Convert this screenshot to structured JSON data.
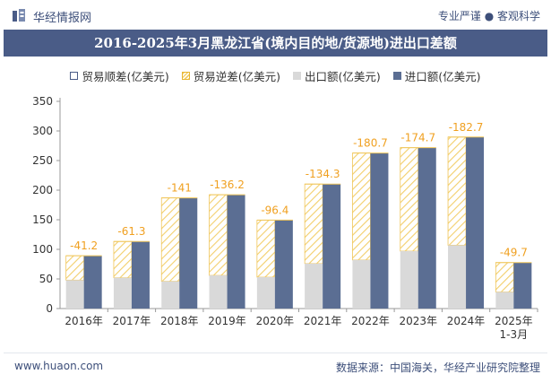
{
  "header": {
    "site_name": "华经情报网",
    "tagline": "专业严谨 ● 客观科学"
  },
  "title": "2016-2025年3月黑龙江省(境内目的地/货源地)进出口差额",
  "legend": {
    "surplus": "贸易顺差(亿美元)",
    "deficit": "贸易逆差(亿美元)",
    "export": "出口额(亿美元)",
    "import": "进口额(亿美元)"
  },
  "footer": {
    "website": "www.huaon.com",
    "source": "数据来源：中国海关，华经产业研究院整理"
  },
  "colors": {
    "export": "#d9d9d9",
    "import": "#5b6e93",
    "deficit_line": "#f0c65a",
    "deficit_label": "#f0a020",
    "title_bg": "#4a5c87"
  },
  "chart_data": {
    "type": "bar",
    "categories": [
      "2016年",
      "2017年",
      "2018年",
      "2019年",
      "2020年",
      "2021年",
      "2022年",
      "2023年",
      "2024年",
      "2025年\n1-3月"
    ],
    "series": [
      {
        "name": "出口额(亿美元)",
        "values": [
          48,
          52,
          46,
          56,
          53,
          76,
          82,
          97,
          107,
          28
        ]
      },
      {
        "name": "进口额(亿美元)",
        "values": [
          89.2,
          113.3,
          187,
          192.2,
          149.4,
          210.3,
          262.7,
          271.7,
          289.7,
          77.7
        ]
      },
      {
        "name": "贸易逆差(亿美元)",
        "values": [
          -41.2,
          -61.3,
          -141,
          -136.2,
          -96.4,
          -134.3,
          -180.7,
          -174.7,
          -182.7,
          -49.7
        ]
      }
    ],
    "data_labels": [
      "-41.2",
      "-61.3",
      "-141",
      "-136.2",
      "-96.4",
      "-134.3",
      "-180.7",
      "-174.7",
      "-182.7",
      "-49.7"
    ],
    "y_ticks": [
      0,
      50,
      100,
      150,
      200,
      250,
      300,
      350
    ],
    "ylim": [
      0,
      350
    ],
    "grid": false,
    "legend_position": "top"
  }
}
